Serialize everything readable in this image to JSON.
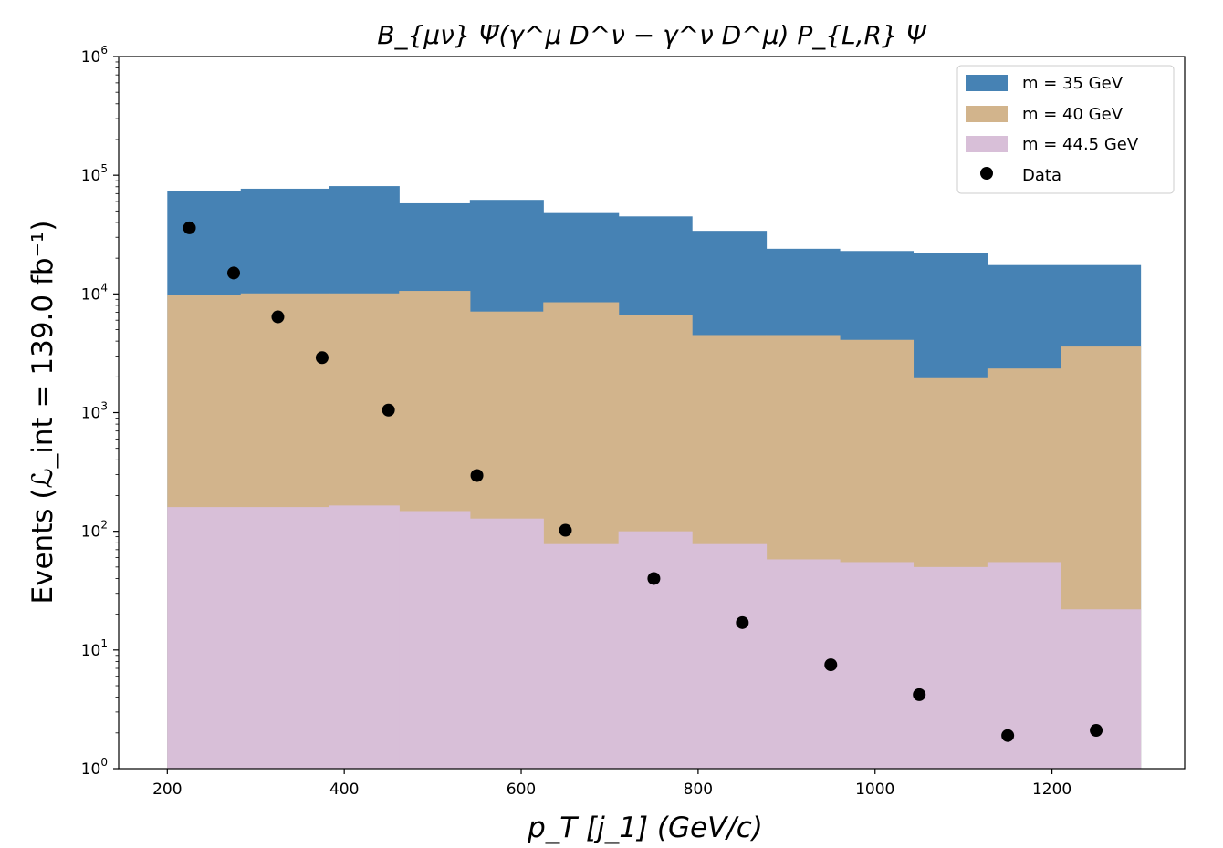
{
  "chart_data": {
    "type": "histogram-area",
    "title": "B_{μν} Ψ̄(γ^μ D^ν − γ^ν D^μ) P_{L,R} Ψ",
    "xlabel": "p_T [j_1] (GeV/c)",
    "ylabel": "Events (ℒ_int = 139.0 fb⁻¹)",
    "xlim": [
      145,
      1350
    ],
    "ylim": [
      1,
      1000000
    ],
    "yscale": "log",
    "grid": false,
    "legend_position": "top-right",
    "xticks": [
      "200",
      "400",
      "600",
      "800",
      "1000",
      "1200"
    ],
    "yticks": [
      {
        "base": "10",
        "exp": "0"
      },
      {
        "base": "10",
        "exp": "1"
      },
      {
        "base": "10",
        "exp": "2"
      },
      {
        "base": "10",
        "exp": "3"
      },
      {
        "base": "10",
        "exp": "4"
      },
      {
        "base": "10",
        "exp": "5"
      },
      {
        "base": "10",
        "exp": "6"
      }
    ],
    "bin_edges": [
      200,
      283,
      383,
      462,
      542,
      625,
      710,
      793,
      877,
      960,
      1043,
      1127,
      1210,
      1300
    ],
    "series": [
      {
        "name": "m = 35 GeV",
        "color": "#4682b4",
        "values": [
          73000,
          77000,
          81000,
          58000,
          62000,
          48000,
          45000,
          34000,
          24000,
          23000,
          22000,
          17500,
          17500
        ]
      },
      {
        "name": "m = 40 GeV",
        "color": "#d2b48c",
        "values": [
          9800,
          10100,
          10100,
          10600,
          7100,
          8500,
          6600,
          4500,
          4500,
          4100,
          1950,
          2350,
          3600
        ]
      },
      {
        "name": "m = 44.5 GeV",
        "color": "#d8bfd8",
        "values": [
          160,
          160,
          165,
          148,
          128,
          78,
          100,
          78,
          58,
          55,
          50,
          55,
          22
        ]
      }
    ],
    "data_points": {
      "name": "Data",
      "color": "#000000",
      "x": [
        225,
        275,
        325,
        375,
        450,
        550,
        650,
        750,
        850,
        950,
        1050,
        1150,
        1250
      ],
      "y": [
        36000,
        15000,
        6400,
        2900,
        1050,
        295,
        102,
        40,
        17,
        7.5,
        4.2,
        1.9,
        2.1
      ]
    }
  }
}
